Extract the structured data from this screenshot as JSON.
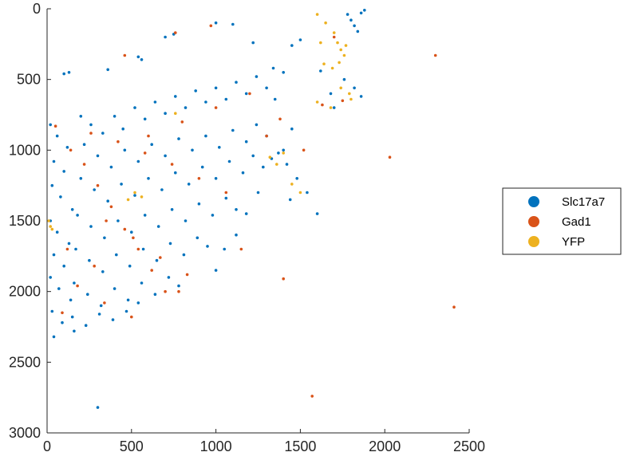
{
  "chart_data": {
    "type": "scatter",
    "title": "",
    "xlabel": "",
    "ylabel": "",
    "xlim": [
      0,
      2500
    ],
    "ylim": [
      0,
      3000
    ],
    "y_axis_reversed": true,
    "grid": false,
    "x_ticks": [
      "0",
      "500",
      "1000",
      "1500",
      "2000",
      "2500"
    ],
    "x_tick_values": [
      0,
      500,
      1000,
      1500,
      2000,
      2500
    ],
    "y_ticks": [
      "0",
      "500",
      "1000",
      "1500",
      "2000",
      "2500",
      "3000"
    ],
    "y_tick_values": [
      0,
      500,
      1000,
      1500,
      2000,
      2500,
      3000
    ],
    "legend_position": "right",
    "series": [
      {
        "name": "Slc17a7",
        "color": "#0072BD",
        "points": [
          [
            20,
            820
          ],
          [
            60,
            900
          ],
          [
            120,
            980
          ],
          [
            40,
            1080
          ],
          [
            100,
            1150
          ],
          [
            30,
            1250
          ],
          [
            80,
            1330
          ],
          [
            150,
            1420
          ],
          [
            20,
            1500
          ],
          [
            60,
            1580
          ],
          [
            130,
            1660
          ],
          [
            40,
            1740
          ],
          [
            100,
            1820
          ],
          [
            20,
            1900
          ],
          [
            70,
            1980
          ],
          [
            140,
            2060
          ],
          [
            30,
            2140
          ],
          [
            90,
            2220
          ],
          [
            160,
            2280
          ],
          [
            40,
            2320
          ],
          [
            200,
            760
          ],
          [
            260,
            820
          ],
          [
            330,
            880
          ],
          [
            400,
            760
          ],
          [
            450,
            850
          ],
          [
            520,
            700
          ],
          [
            580,
            780
          ],
          [
            640,
            660
          ],
          [
            700,
            740
          ],
          [
            760,
            620
          ],
          [
            820,
            700
          ],
          [
            880,
            580
          ],
          [
            940,
            660
          ],
          [
            1000,
            560
          ],
          [
            1060,
            640
          ],
          [
            1120,
            520
          ],
          [
            1180,
            600
          ],
          [
            1240,
            480
          ],
          [
            1300,
            560
          ],
          [
            1350,
            640
          ],
          [
            220,
            960
          ],
          [
            300,
            1040
          ],
          [
            380,
            1120
          ],
          [
            460,
            1000
          ],
          [
            540,
            1080
          ],
          [
            620,
            960
          ],
          [
            700,
            1040
          ],
          [
            780,
            920
          ],
          [
            860,
            1000
          ],
          [
            940,
            900
          ],
          [
            1020,
            980
          ],
          [
            1100,
            860
          ],
          [
            1180,
            940
          ],
          [
            1240,
            820
          ],
          [
            1300,
            900
          ],
          [
            1370,
            1020
          ],
          [
            1420,
            1100
          ],
          [
            1480,
            1200
          ],
          [
            1540,
            1300
          ],
          [
            1600,
            1450
          ],
          [
            200,
            1200
          ],
          [
            280,
            1280
          ],
          [
            360,
            1360
          ],
          [
            440,
            1240
          ],
          [
            520,
            1320
          ],
          [
            600,
            1200
          ],
          [
            680,
            1280
          ],
          [
            760,
            1160
          ],
          [
            840,
            1240
          ],
          [
            920,
            1120
          ],
          [
            1000,
            1200
          ],
          [
            1080,
            1080
          ],
          [
            1160,
            1160
          ],
          [
            1220,
            1040
          ],
          [
            1280,
            1120
          ],
          [
            180,
            1460
          ],
          [
            260,
            1540
          ],
          [
            340,
            1620
          ],
          [
            420,
            1500
          ],
          [
            500,
            1580
          ],
          [
            580,
            1460
          ],
          [
            660,
            1540
          ],
          [
            740,
            1420
          ],
          [
            820,
            1500
          ],
          [
            900,
            1380
          ],
          [
            980,
            1460
          ],
          [
            1060,
            1340
          ],
          [
            1120,
            1420
          ],
          [
            170,
            1700
          ],
          [
            250,
            1780
          ],
          [
            330,
            1860
          ],
          [
            410,
            1740
          ],
          [
            490,
            1820
          ],
          [
            570,
            1700
          ],
          [
            650,
            1780
          ],
          [
            730,
            1660
          ],
          [
            810,
            1740
          ],
          [
            890,
            1620
          ],
          [
            950,
            1680
          ],
          [
            160,
            1940
          ],
          [
            240,
            2020
          ],
          [
            320,
            2100
          ],
          [
            400,
            1980
          ],
          [
            480,
            2060
          ],
          [
            560,
            1940
          ],
          [
            640,
            2020
          ],
          [
            720,
            1900
          ],
          [
            780,
            1960
          ],
          [
            150,
            2180
          ],
          [
            230,
            2240
          ],
          [
            310,
            2160
          ],
          [
            390,
            2200
          ],
          [
            470,
            2140
          ],
          [
            540,
            2080
          ],
          [
            100,
            460
          ],
          [
            130,
            450
          ],
          [
            540,
            340
          ],
          [
            560,
            360
          ],
          [
            360,
            430
          ],
          [
            700,
            200
          ],
          [
            750,
            180
          ],
          [
            1000,
            100
          ],
          [
            1100,
            110
          ],
          [
            1220,
            240
          ],
          [
            1340,
            420
          ],
          [
            1400,
            450
          ],
          [
            1450,
            260
          ],
          [
            1500,
            220
          ],
          [
            1620,
            440
          ],
          [
            1680,
            600
          ],
          [
            1760,
            500
          ],
          [
            1820,
            560
          ],
          [
            1860,
            620
          ],
          [
            1780,
            40
          ],
          [
            1800,
            80
          ],
          [
            1820,
            120
          ],
          [
            1840,
            160
          ],
          [
            1860,
            30
          ],
          [
            1880,
            10
          ],
          [
            1700,
            700
          ],
          [
            300,
            2820
          ],
          [
            1440,
            1350
          ],
          [
            1400,
            1000
          ],
          [
            1330,
            1060
          ],
          [
            1250,
            1300
          ],
          [
            1180,
            1450
          ],
          [
            1120,
            1600
          ],
          [
            1050,
            1700
          ],
          [
            1000,
            1850
          ],
          [
            1450,
            850
          ]
        ]
      },
      {
        "name": "Gad1",
        "color": "#D95319",
        "points": [
          [
            50,
            830
          ],
          [
            140,
            1000
          ],
          [
            220,
            1100
          ],
          [
            300,
            1250
          ],
          [
            380,
            1400
          ],
          [
            460,
            1560
          ],
          [
            540,
            1700
          ],
          [
            620,
            1850
          ],
          [
            700,
            2000
          ],
          [
            90,
            2150
          ],
          [
            260,
            880
          ],
          [
            420,
            940
          ],
          [
            580,
            1020
          ],
          [
            740,
            1100
          ],
          [
            900,
            1200
          ],
          [
            1060,
            1300
          ],
          [
            350,
            1500
          ],
          [
            510,
            1620
          ],
          [
            670,
            1760
          ],
          [
            830,
            1880
          ],
          [
            180,
            1960
          ],
          [
            340,
            2080
          ],
          [
            500,
            2180
          ],
          [
            120,
            1700
          ],
          [
            280,
            1820
          ],
          [
            600,
            900
          ],
          [
            800,
            800
          ],
          [
            1000,
            700
          ],
          [
            1200,
            600
          ],
          [
            460,
            330
          ],
          [
            780,
            2000
          ],
          [
            1300,
            900
          ],
          [
            1630,
            680
          ],
          [
            1750,
            650
          ],
          [
            2030,
            1050
          ],
          [
            2300,
            330
          ],
          [
            2410,
            2110
          ],
          [
            1400,
            1910
          ],
          [
            1570,
            2740
          ],
          [
            970,
            120
          ],
          [
            760,
            170
          ],
          [
            1150,
            1700
          ],
          [
            1380,
            780
          ],
          [
            1700,
            200
          ],
          [
            1520,
            1000
          ]
        ]
      },
      {
        "name": "YFP",
        "color": "#EDB120",
        "points": [
          [
            1600,
            40
          ],
          [
            1650,
            100
          ],
          [
            1700,
            170
          ],
          [
            1720,
            240
          ],
          [
            1740,
            290
          ],
          [
            1760,
            330
          ],
          [
            1640,
            390
          ],
          [
            1690,
            420
          ],
          [
            1730,
            380
          ],
          [
            1770,
            260
          ],
          [
            1680,
            700
          ],
          [
            1600,
            660
          ],
          [
            1450,
            1240
          ],
          [
            1500,
            1300
          ],
          [
            1400,
            1020
          ],
          [
            1320,
            1050
          ],
          [
            1360,
            1100
          ],
          [
            480,
            1350
          ],
          [
            520,
            1300
          ],
          [
            560,
            1330
          ],
          [
            10,
            1500
          ],
          [
            30,
            1560
          ],
          [
            20,
            1540
          ],
          [
            760,
            740
          ],
          [
            1740,
            560
          ],
          [
            1790,
            600
          ],
          [
            1800,
            640
          ],
          [
            1620,
            240
          ]
        ]
      }
    ]
  }
}
